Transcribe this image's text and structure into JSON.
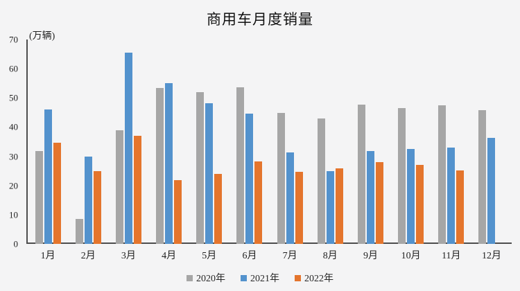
{
  "page": {
    "background_color": "#f4f4f5",
    "axis_color": "#4d4d4d",
    "text_color": "#1f1f1f"
  },
  "chart_data": {
    "type": "bar",
    "title": "商用车月度销量",
    "unit_label": "(万辆)",
    "categories": [
      "1月",
      "2月",
      "3月",
      "4月",
      "5月",
      "6月",
      "7月",
      "8月",
      "9月",
      "10月",
      "11月",
      "12月"
    ],
    "series": [
      {
        "name": "2020年",
        "color": "#a6a6a6",
        "values": [
          31.8,
          8.6,
          39.0,
          53.5,
          52.0,
          53.6,
          44.8,
          43.0,
          47.8,
          46.5,
          47.4,
          45.8
        ]
      },
      {
        "name": "2021年",
        "color": "#5392cd",
        "values": [
          46.0,
          29.8,
          65.5,
          55.0,
          48.2,
          44.6,
          31.3,
          24.9,
          31.8,
          32.4,
          33.1,
          36.4
        ]
      },
      {
        "name": "2022年",
        "color": "#e4752d",
        "values": [
          34.6,
          25.0,
          37.0,
          21.8,
          23.9,
          28.2,
          24.6,
          25.9,
          27.9,
          27.1,
          25.2,
          null
        ]
      }
    ],
    "xlabel": "",
    "ylabel": "",
    "ylim": [
      0,
      70
    ],
    "y_ticks": [
      0,
      10,
      20,
      30,
      40,
      50,
      60,
      70
    ],
    "grid": false,
    "legend_position": "bottom"
  }
}
